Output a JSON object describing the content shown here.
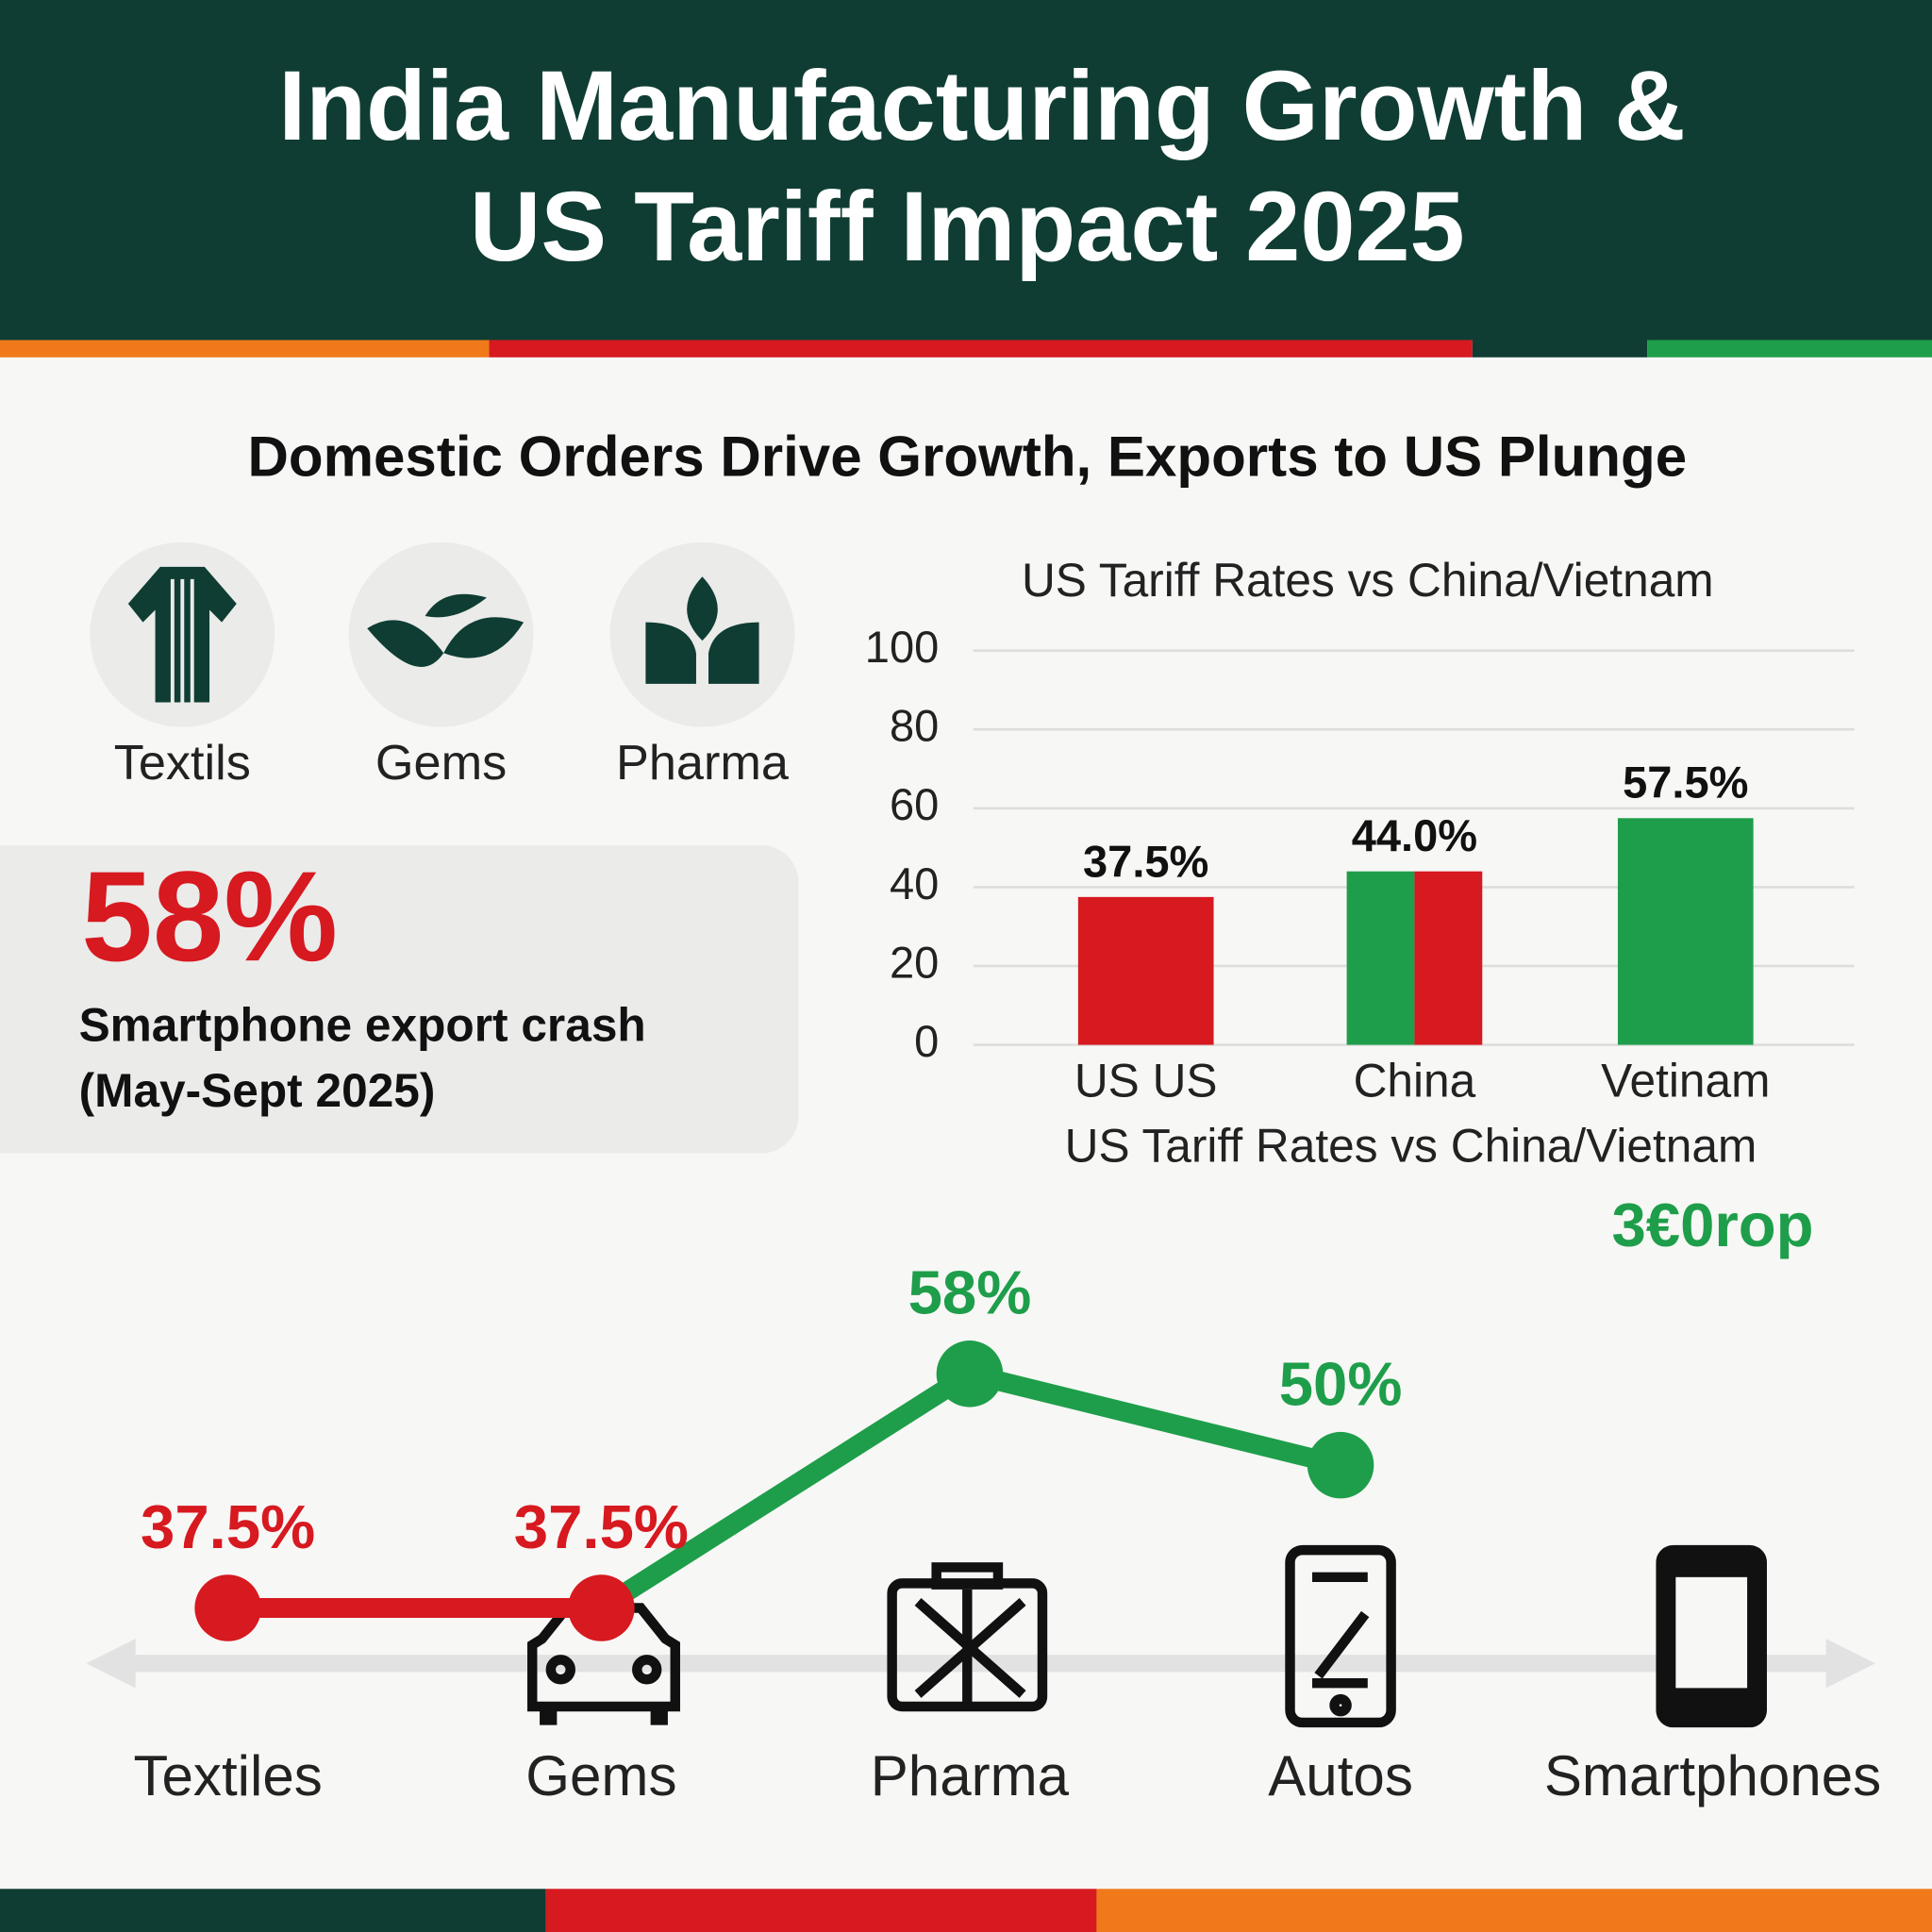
{
  "header": {
    "title_lines": [
      "India Manufacturing Growth &",
      "US Tariff Impact 2025"
    ]
  },
  "subtitle": "Domestic Orders Drive Growth, Exports to US Plunge",
  "sectors": [
    "Textils",
    "Gems",
    "Pharma"
  ],
  "stat": {
    "value": "58%",
    "caption_lines": [
      "Smartphone export crash",
      "(May-Sept 2025)"
    ]
  },
  "chart_data": [
    {
      "type": "bar",
      "title": "US Tariff Rates vs China/Vietnam",
      "categories": [
        "US US",
        "China",
        "Vetinam"
      ],
      "values": [
        37.5,
        44.0,
        57.5
      ],
      "value_labels": [
        "37.5%",
        "44.0%",
        "57.5%"
      ],
      "colors": [
        [
          "#d71920"
        ],
        [
          "#1e9e4a",
          "#d71920"
        ],
        [
          "#1e9e4a"
        ]
      ],
      "x_label": "US Tariff Rates vs China/Vietnam",
      "ylim": [
        0,
        100
      ],
      "yticks": [
        0,
        20,
        40,
        60,
        80,
        100
      ],
      "grid": true
    },
    {
      "type": "line",
      "categories": [
        "Textiles",
        "Gems",
        "Pharma",
        "Autos",
        "Smartphones"
      ],
      "values": [
        37.5,
        37.5,
        58,
        50,
        null
      ],
      "value_labels": [
        "37.5%",
        "37.5%",
        "58%",
        "50%",
        "3€0rop"
      ],
      "colors": [
        "#d71920",
        "#d71920",
        "#1e9e4a",
        "#1e9e4a",
        "#1e9e4a"
      ]
    }
  ]
}
